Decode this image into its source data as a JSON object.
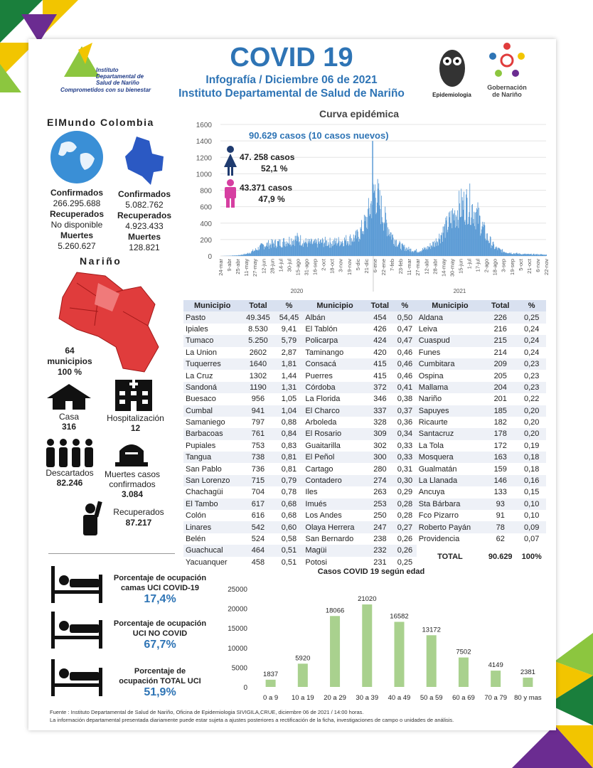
{
  "header": {
    "title": "COVID 19",
    "subtitle": "Infografía / Diciembre 06 de 2021",
    "institution": "Instituto Departamental de Salud de Nariño",
    "logo_left_text": "Instituto Departamental de Salud de Nariño",
    "logo_left_tagline": "Comprometidos con su bienestar",
    "logo_epi": "Epidemiologia",
    "logo_gob": "Gobernación de Nariño"
  },
  "world_colombia": {
    "heading": "ElMundo Colombia",
    "world": {
      "confirmed_label": "Confirmados",
      "confirmed": "266.295.688",
      "recovered_label": "Recuperados",
      "recovered": "No disponible",
      "deaths_label": "Muertes",
      "deaths": "5.260.627"
    },
    "colombia": {
      "confirmed_label": "Confirmados",
      "confirmed": "5.082.762",
      "recovered_label": "Recuperados",
      "recovered": "4.923.433",
      "deaths_label": "Muertes",
      "deaths": "128.821"
    }
  },
  "narino": {
    "heading": "Nariño",
    "municipalities": "64",
    "municipalities_label": "municipios",
    "municipalities_pct": "100 %",
    "home_label": "Casa",
    "home": "316",
    "hosp_label": "Hospitalización",
    "hosp": "12",
    "discarded_label": "Descartados",
    "discarded": "82.246",
    "deaths_label": "Muertes casos confirmados",
    "deaths": "3.084",
    "recovered_label": "Recuperados",
    "recovered": "87.217"
  },
  "epi": {
    "total_note": "90.629 casos (10 casos nuevos)",
    "female_cases": "47. 258 casos",
    "female_pct": "52,1 %",
    "male_cases": "43.371 casos",
    "male_pct": "47,9 %"
  },
  "table": {
    "headers": [
      "Municipio",
      "Total",
      "%",
      "Municipio",
      "Total",
      "%",
      "Municipio",
      "Total",
      "%"
    ],
    "col1": [
      [
        "Pasto",
        "49.345",
        "54,45"
      ],
      [
        "Ipiales",
        "8.530",
        "9,41"
      ],
      [
        "Tumaco",
        "5.250",
        "5,79"
      ],
      [
        "La Union",
        "2602",
        "2,87"
      ],
      [
        "Tuquerres",
        "1640",
        "1,81"
      ],
      [
        "La Cruz",
        "1302",
        "1,44"
      ],
      [
        "Sandoná",
        "1190",
        "1,31"
      ],
      [
        "Buesaco",
        "956",
        "1,05"
      ],
      [
        "Cumbal",
        "941",
        "1,04"
      ],
      [
        "Samaniego",
        "797",
        "0,88"
      ],
      [
        "Barbacoas",
        "761",
        "0,84"
      ],
      [
        "Pupiales",
        "753",
        "0,83"
      ],
      [
        "Tangua",
        "738",
        "0,81"
      ],
      [
        "San Pablo",
        "736",
        "0,81"
      ],
      [
        "San Lorenzo",
        "715",
        "0,79"
      ],
      [
        "Chachagüi",
        "704",
        "0,78"
      ],
      [
        "El Tambo",
        "617",
        "0,68"
      ],
      [
        "Colón",
        "616",
        "0,68"
      ],
      [
        "Linares",
        "542",
        "0,60"
      ],
      [
        "Belén",
        "524",
        "0,58"
      ],
      [
        "Guachucal",
        "464",
        "0,51"
      ],
      [
        "Yacuanquer",
        "458",
        "0,51"
      ]
    ],
    "col2": [
      [
        "Albán",
        "454",
        "0,50"
      ],
      [
        "El Tablón",
        "426",
        "0,47"
      ],
      [
        "Policarpa",
        "424",
        "0,47"
      ],
      [
        "Taminango",
        "420",
        "0,46"
      ],
      [
        "Consacá",
        "415",
        "0,46"
      ],
      [
        "Puerres",
        "415",
        "0,46"
      ],
      [
        "Córdoba",
        "372",
        "0,41"
      ],
      [
        "La Florida",
        "346",
        "0,38"
      ],
      [
        "El Charco",
        "337",
        "0,37"
      ],
      [
        "Arboleda",
        "328",
        "0,36"
      ],
      [
        "El Rosario",
        "309",
        "0,34"
      ],
      [
        "Guaitarilla",
        "302",
        "0,33"
      ],
      [
        "El Peñol",
        "300",
        "0,33"
      ],
      [
        "Cartago",
        "280",
        "0,31"
      ],
      [
        "Contadero",
        "274",
        "0,30"
      ],
      [
        "Iles",
        "263",
        "0,29"
      ],
      [
        "Imués",
        "253",
        "0,28"
      ],
      [
        "Los Andes",
        "250",
        "0,28"
      ],
      [
        "Olaya Herrera",
        "247",
        "0,27"
      ],
      [
        "San Bernardo",
        "238",
        "0,26"
      ],
      [
        "Magüi",
        "232",
        "0,26"
      ],
      [
        "Potosi",
        "231",
        "0,25"
      ]
    ],
    "col3": [
      [
        "Aldana",
        "226",
        "0,25"
      ],
      [
        "Leiva",
        "216",
        "0,24"
      ],
      [
        "Cuaspud",
        "215",
        "0,24"
      ],
      [
        "Funes",
        "214",
        "0,24"
      ],
      [
        "Cumbitara",
        "209",
        "0,23"
      ],
      [
        "Ospina",
        "205",
        "0,23"
      ],
      [
        "Mallama",
        "204",
        "0,23"
      ],
      [
        "Nariño",
        "201",
        "0,22"
      ],
      [
        "Sapuyes",
        "185",
        "0,20"
      ],
      [
        "Ricaurte",
        "182",
        "0,20"
      ],
      [
        "Santacruz",
        "178",
        "0,20"
      ],
      [
        "La Tola",
        "172",
        "0,19"
      ],
      [
        "Mosquera",
        "163",
        "0,18"
      ],
      [
        "Gualmatán",
        "159",
        "0,18"
      ],
      [
        "La Llanada",
        "146",
        "0,16"
      ],
      [
        "Ancuya",
        "133",
        "0,15"
      ],
      [
        "Sta Bárbara",
        "93",
        "0,10"
      ],
      [
        "Fco Pizarro",
        "91",
        "0,10"
      ],
      [
        "Roberto Payán",
        "78",
        "0,09"
      ],
      [
        "Providencia",
        "62",
        "0,07"
      ]
    ],
    "total": [
      "TOTAL",
      "90.629",
      "100%"
    ]
  },
  "uci": [
    {
      "line1": "Porcentaje de ocupación",
      "line2": "camas UCI COVID-19",
      "value": "17,4%"
    },
    {
      "line1": "Porcentaje de ocupación",
      "line2": "UCI NO COVID",
      "value": "67,7%"
    },
    {
      "line1": "Porcentaje de",
      "line2": "ocupación TOTAL UCI",
      "value": "51,9%"
    }
  ],
  "footer": {
    "line1": "Fuente : Instituto Departamental de Salud de Nariño, Oficina de Epidemiologia SIVIGILA,CRUE,  diciembre 06 de 2021 / 14:00  horas.",
    "line2": "La información departamental presentada diariamente puede estar sujeta a ajustes posteriores a  rectificación de la ficha, investigaciones de campo o unidades de análisis."
  },
  "colors": {
    "accent": "#2e74b5",
    "curve": "#5b9bd5",
    "age_bars": "#a9d18e",
    "map": "#e03c3c"
  },
  "chart_data": [
    {
      "type": "area",
      "title": "Curva epidémica",
      "ylim": [
        0,
        1600
      ],
      "yticks": [
        0,
        200,
        400,
        600,
        800,
        1000,
        1200,
        1400,
        1600
      ],
      "x": [
        "24-mar",
        "9-abr",
        "25-abr",
        "11-may",
        "27-may",
        "12-jun",
        "28-jun",
        "14-jul",
        "30-jul",
        "15-ago",
        "31-ago",
        "16-sep",
        "2-oct",
        "18-oct",
        "3-nov",
        "19-nov",
        "5-dic",
        "21-dic",
        "6-ene",
        "22-ene",
        "7-feb",
        "23-feb",
        "11-mar",
        "27-mar",
        "12-abr",
        "28-abr",
        "14-may",
        "30-may",
        "15-jun",
        "1-jul",
        "17-jul",
        "2-ago",
        "18-ago",
        "3-sep",
        "19-sep",
        "5-oct",
        "21-oct",
        "6-nov",
        "22-nov"
      ],
      "values": [
        0,
        3,
        8,
        25,
        70,
        130,
        150,
        160,
        190,
        210,
        160,
        150,
        170,
        160,
        180,
        200,
        240,
        420,
        800,
        480,
        240,
        120,
        80,
        60,
        90,
        160,
        300,
        460,
        600,
        640,
        480,
        240,
        100,
        55,
        35,
        25,
        20,
        20,
        15
      ],
      "spike": {
        "x": "6-ene",
        "value": 1400
      },
      "year_labels": [
        "2020",
        "2021"
      ]
    },
    {
      "type": "bar",
      "title": "Casos COVID 19  según edad",
      "categories": [
        "0 a 9",
        "10 a 19",
        "20 a 29",
        "30 a 39",
        "40 a 49",
        "50 a 59",
        "60 a 69",
        "70 a 79",
        "80 y mas"
      ],
      "values": [
        1837,
        5920,
        18066,
        21020,
        16582,
        13172,
        7502,
        4149,
        2381
      ],
      "ylim": [
        0,
        25000
      ],
      "yticks": [
        0,
        5000,
        10000,
        15000,
        20000,
        25000
      ]
    }
  ]
}
